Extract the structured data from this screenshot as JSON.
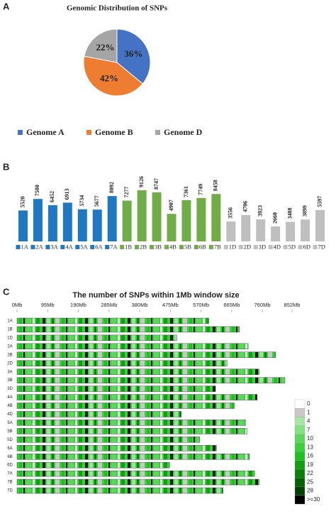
{
  "panel_labels": [
    "A",
    "B",
    "C"
  ],
  "chart_data": [
    {
      "type": "pie",
      "title": "Genomic Distribution of SNPs",
      "categories": [
        "Genome A",
        "Genome B",
        "Genome D"
      ],
      "values": [
        36,
        42,
        22
      ],
      "value_labels": [
        "36%",
        "42%",
        "22%"
      ],
      "colors": [
        "#4472c4",
        "#ed7d31",
        "#a5a5a5"
      ]
    },
    {
      "type": "bar",
      "categories": [
        "1A",
        "2A",
        "3A",
        "4A",
        "5A",
        "6A",
        "7A",
        "1B",
        "2B",
        "3B",
        "4B",
        "5B",
        "6B",
        "7B",
        "1D",
        "2D",
        "3D",
        "4D",
        "5D",
        "6D",
        "7D"
      ],
      "values": [
        5520,
        7580,
        6452,
        6913,
        5734,
        5677,
        8092,
        7277,
        9126,
        8747,
        4907,
        7361,
        7749,
        8458,
        3556,
        4706,
        3923,
        2660,
        3488,
        3899,
        5597
      ],
      "colors": [
        "#1f78c1",
        "#1f78c1",
        "#1f78c1",
        "#1f78c1",
        "#1f78c1",
        "#1f78c1",
        "#1f78c1",
        "#70ad47",
        "#70ad47",
        "#70ad47",
        "#70ad47",
        "#70ad47",
        "#70ad47",
        "#70ad47",
        "#bfbfbf",
        "#bfbfbf",
        "#bfbfbf",
        "#bfbfbf",
        "#bfbfbf",
        "#bfbfbf",
        "#bfbfbf"
      ]
    },
    {
      "type": "heatmap",
      "title": "The number of SNPs within 1Mb window size",
      "categories": [
        "1A",
        "1B",
        "1D",
        "2A",
        "2B",
        "2D",
        "3A",
        "3B",
        "3D",
        "4A",
        "4B",
        "4D",
        "5A",
        "5B",
        "5D",
        "6A",
        "6B",
        "6D",
        "7A",
        "7B",
        "7D"
      ],
      "values": [
        594,
        689,
        495,
        716,
        801,
        651,
        750,
        830,
        615,
        744,
        673,
        509,
        709,
        713,
        566,
        618,
        720,
        473,
        736,
        750,
        638
      ],
      "xlim": [
        0,
        852
      ],
      "xticks": [
        {
          "value": 0,
          "label": "0Mb"
        },
        {
          "value": 95,
          "label": "95Mb"
        },
        {
          "value": 190,
          "label": "190Mb"
        },
        {
          "value": 285,
          "label": "285Mb"
        },
        {
          "value": 380,
          "label": "380Mb"
        },
        {
          "value": 475,
          "label": "475Mb"
        },
        {
          "value": 570,
          "label": "570Mb"
        },
        {
          "value": 665,
          "label": "665Mb"
        },
        {
          "value": 760,
          "label": "760Mb"
        },
        {
          "value": 852,
          "label": "852Mb"
        }
      ],
      "colorbar": {
        "ticks": [
          0,
          1,
          4,
          7,
          10,
          13,
          16,
          19,
          22,
          25,
          28,
          {
            "value": 30,
            "label": ">=30"
          }
        ],
        "colors": [
          "#ffffff",
          "#c8c8c8",
          "#a8e6a8",
          "#84e084",
          "#5cd65c",
          "#3ccf3c",
          "#20c020",
          "#10a010",
          "#0a800a",
          "#066006",
          "#034003",
          "#000000"
        ]
      }
    }
  ]
}
